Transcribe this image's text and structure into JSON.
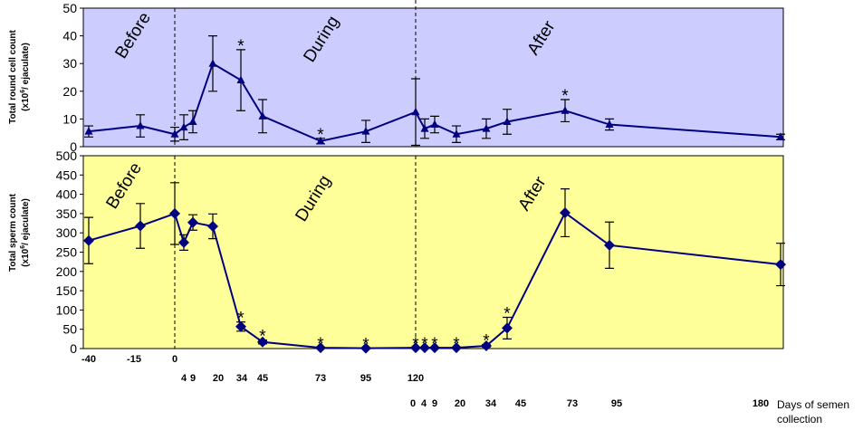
{
  "chart_data": [
    {
      "type": "line",
      "ylabel_line1": "Total round cell count",
      "ylabel_line2": "(x10",
      "ylabel_sup": "6",
      "ylabel_line2_end": "/ ejaculate)",
      "ylim": [
        0,
        50
      ],
      "yticks": [
        "0",
        "10",
        "20",
        "30",
        "40",
        "50"
      ],
      "background": "#ccccff",
      "line_color": "#000080",
      "marker": "triangle",
      "phases": [
        {
          "label": "Before"
        },
        {
          "label": "During"
        },
        {
          "label": "After"
        }
      ],
      "points": [
        {
          "day": "-40",
          "value": 5.5,
          "err": 2,
          "sig": ""
        },
        {
          "day": "-15",
          "value": 7.5,
          "err": 4,
          "sig": ""
        },
        {
          "day": "0",
          "value": 4.5,
          "err": 2.5,
          "sig": ""
        },
        {
          "day": "4",
          "value": 7,
          "err": 4.5,
          "sig": ""
        },
        {
          "day": "9",
          "value": 9,
          "err": 4,
          "sig": ""
        },
        {
          "day": "20",
          "value": 30,
          "err": 10,
          "sig": ""
        },
        {
          "day": "34",
          "value": 24,
          "err": 11,
          "sig": "*"
        },
        {
          "day": "45",
          "value": 11,
          "err": 6,
          "sig": ""
        },
        {
          "day": "73",
          "value": 2,
          "err": 1,
          "sig": "*"
        },
        {
          "day": "95",
          "value": 5.5,
          "err": 4,
          "sig": ""
        },
        {
          "day": "120",
          "value": 12.5,
          "err": 12,
          "sig": ""
        },
        {
          "day": "0",
          "value": 6.5,
          "err": 3.5,
          "sig": ""
        },
        {
          "day": "4",
          "value": 8,
          "err": 3,
          "sig": ""
        },
        {
          "day": "20",
          "value": 4.5,
          "err": 3,
          "sig": ""
        },
        {
          "day": "34",
          "value": 6.5,
          "err": 3.5,
          "sig": ""
        },
        {
          "day": "45",
          "value": 9,
          "err": 4.5,
          "sig": ""
        },
        {
          "day": "73",
          "value": 13,
          "err": 4,
          "sig": "*"
        },
        {
          "day": "95",
          "value": 8,
          "err": 2,
          "sig": ""
        },
        {
          "day": "180",
          "value": 3.5,
          "err": 1,
          "sig": ""
        }
      ]
    },
    {
      "type": "line",
      "ylabel_line1": "Total sperm count",
      "ylabel_line2": "(x10",
      "ylabel_sup": "6",
      "ylabel_line2_end": "/ ejaculate)",
      "ylim": [
        0,
        500
      ],
      "yticks": [
        "0",
        "50",
        "100",
        "150",
        "200",
        "250",
        "300",
        "350",
        "400",
        "450",
        "500"
      ],
      "background": "#ffff99",
      "line_color": "#000080",
      "marker": "diamond",
      "phases": [
        {
          "label": "Before"
        },
        {
          "label": "During"
        },
        {
          "label": "After"
        }
      ],
      "points": [
        {
          "day": "-40",
          "value": 280,
          "err": 60,
          "sig": ""
        },
        {
          "day": "-15",
          "value": 318,
          "err": 58,
          "sig": ""
        },
        {
          "day": "0",
          "value": 350,
          "err": 80,
          "sig": ""
        },
        {
          "day": "4",
          "value": 275,
          "err": 20,
          "sig": ""
        },
        {
          "day": "9",
          "value": 327,
          "err": 20,
          "sig": ""
        },
        {
          "day": "20",
          "value": 317,
          "err": 32,
          "sig": ""
        },
        {
          "day": "34",
          "value": 57,
          "err": 12,
          "sig": "*"
        },
        {
          "day": "45",
          "value": 17,
          "err": 5,
          "sig": "*"
        },
        {
          "day": "73",
          "value": 2,
          "err": 0,
          "sig": "*"
        },
        {
          "day": "95",
          "value": 1,
          "err": 0,
          "sig": "*"
        },
        {
          "day": "120",
          "value": 2,
          "err": 0,
          "sig": "*"
        },
        {
          "day": "0",
          "value": 2,
          "err": 0,
          "sig": "*"
        },
        {
          "day": "4",
          "value": 2,
          "err": 0,
          "sig": "*"
        },
        {
          "day": "20",
          "value": 2,
          "err": 0,
          "sig": "*"
        },
        {
          "day": "34",
          "value": 7,
          "err": 3,
          "sig": "*"
        },
        {
          "day": "45",
          "value": 53,
          "err": 28,
          "sig": "*"
        },
        {
          "day": "73",
          "value": 352,
          "err": 62,
          "sig": ""
        },
        {
          "day": "95",
          "value": 268,
          "err": 60,
          "sig": ""
        },
        {
          "day": "180",
          "value": 218,
          "err": 55,
          "sig": ""
        }
      ]
    }
  ],
  "x_axis": {
    "row1": [
      "-40",
      "-15",
      "0",
      "20",
      "34",
      "45",
      "73",
      "95",
      "120"
    ],
    "row2": [
      "4",
      "9"
    ],
    "row3": [
      "0",
      "4",
      "9",
      "20",
      "34",
      "45",
      "73",
      "95",
      "180"
    ],
    "label_line1": "Days of semen",
    "label_line2": "collection"
  }
}
